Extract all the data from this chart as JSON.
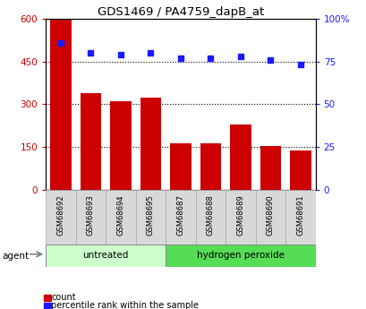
{
  "title": "GDS1469 / PA4759_dapB_at",
  "categories": [
    "GSM68692",
    "GSM68693",
    "GSM68694",
    "GSM68695",
    "GSM68687",
    "GSM68688",
    "GSM68689",
    "GSM68690",
    "GSM68691"
  ],
  "bar_values": [
    597,
    340,
    310,
    323,
    163,
    163,
    228,
    153,
    138
  ],
  "dot_values": [
    86,
    80,
    79,
    80,
    77,
    77,
    78,
    76,
    73
  ],
  "bar_color": "#cc0000",
  "dot_color": "#1a1aff",
  "ylim_left": [
    0,
    600
  ],
  "ylim_right": [
    0,
    100
  ],
  "yticks_left": [
    0,
    150,
    300,
    450,
    600
  ],
  "yticks_right": [
    0,
    25,
    50,
    75,
    100
  ],
  "ytick_labels_left": [
    "0",
    "150",
    "300",
    "450",
    "600"
  ],
  "ytick_labels_right": [
    "0",
    "25",
    "50",
    "75",
    "100%"
  ],
  "grid_values": [
    150,
    300,
    450
  ],
  "groups": [
    {
      "label": "untreated",
      "indices": [
        0,
        1,
        2,
        3
      ],
      "color": "#ccffcc"
    },
    {
      "label": "hydrogen peroxide",
      "indices": [
        4,
        5,
        6,
        7,
        8
      ],
      "color": "#55dd55"
    }
  ],
  "agent_label": "agent",
  "legend_items": [
    {
      "label": "count",
      "color": "#cc0000"
    },
    {
      "label": "percentile rank within the sample",
      "color": "#1a1aff"
    }
  ],
  "bg_color": "#ffffff",
  "tick_bg_color": "#d8d8d8"
}
